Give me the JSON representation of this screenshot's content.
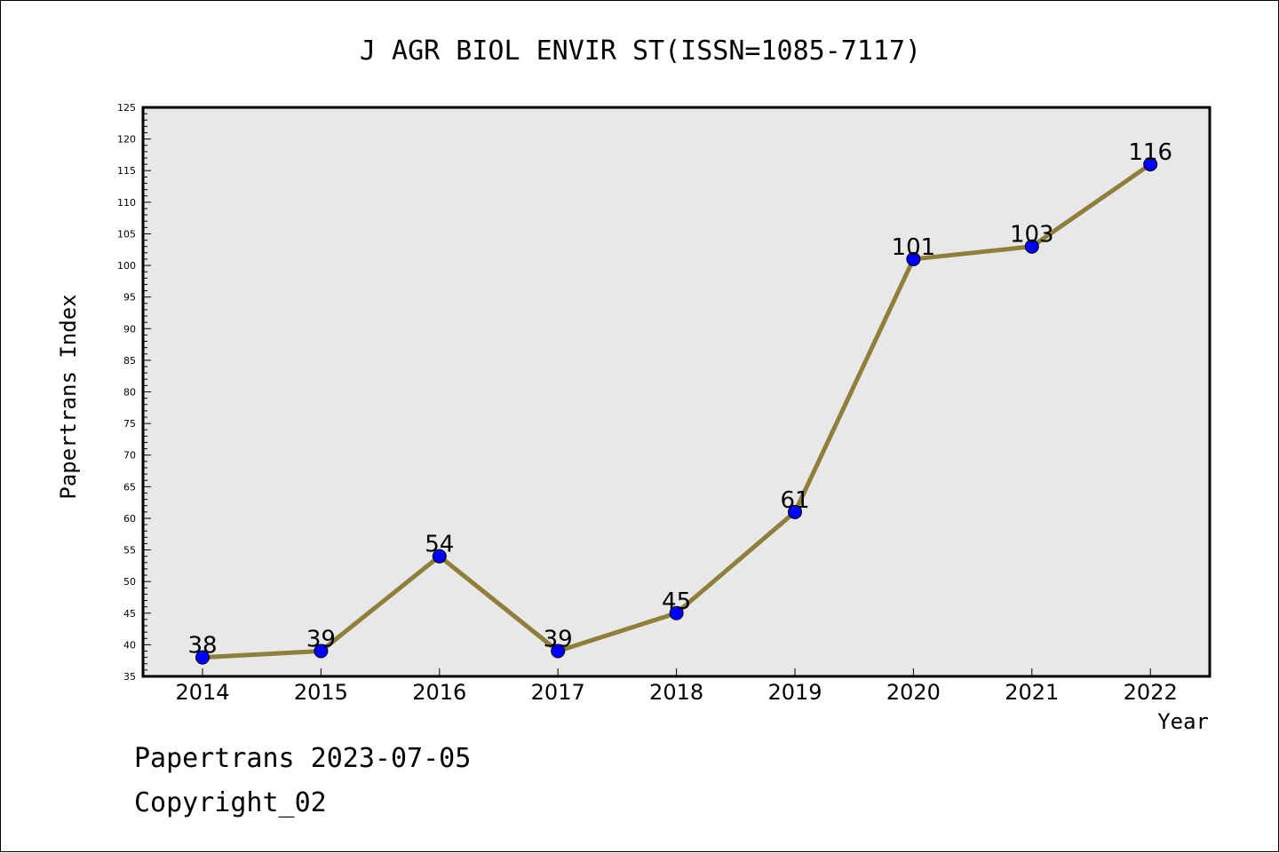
{
  "chart_data": {
    "type": "line",
    "title": "J AGR BIOL ENVIR ST(ISSN=1085-7117)",
    "xlabel": "Year",
    "ylabel": "Papertrans Index",
    "categories": [
      "2014",
      "2015",
      "2016",
      "2017",
      "2018",
      "2019",
      "2020",
      "2021",
      "2022"
    ],
    "values": [
      38,
      39,
      54,
      39,
      45,
      61,
      101,
      103,
      116
    ],
    "data_labels": [
      "38",
      "39",
      "54",
      "39",
      "45",
      "61",
      "101",
      "103",
      "116"
    ],
    "ylim": [
      35,
      125
    ],
    "yticks": [
      "35",
      "40",
      "45",
      "50",
      "55",
      "60",
      "65",
      "70",
      "75",
      "80",
      "85",
      "90",
      "95",
      "100",
      "105",
      "110",
      "115",
      "120",
      "125"
    ],
    "grid": false,
    "plot_background": "#e8e8e8",
    "line_color": "#8f7f3a",
    "marker_color": "#0000ff"
  },
  "footer": {
    "date_line": "Papertrans 2023-07-05",
    "copyright": "Copyright_02"
  }
}
